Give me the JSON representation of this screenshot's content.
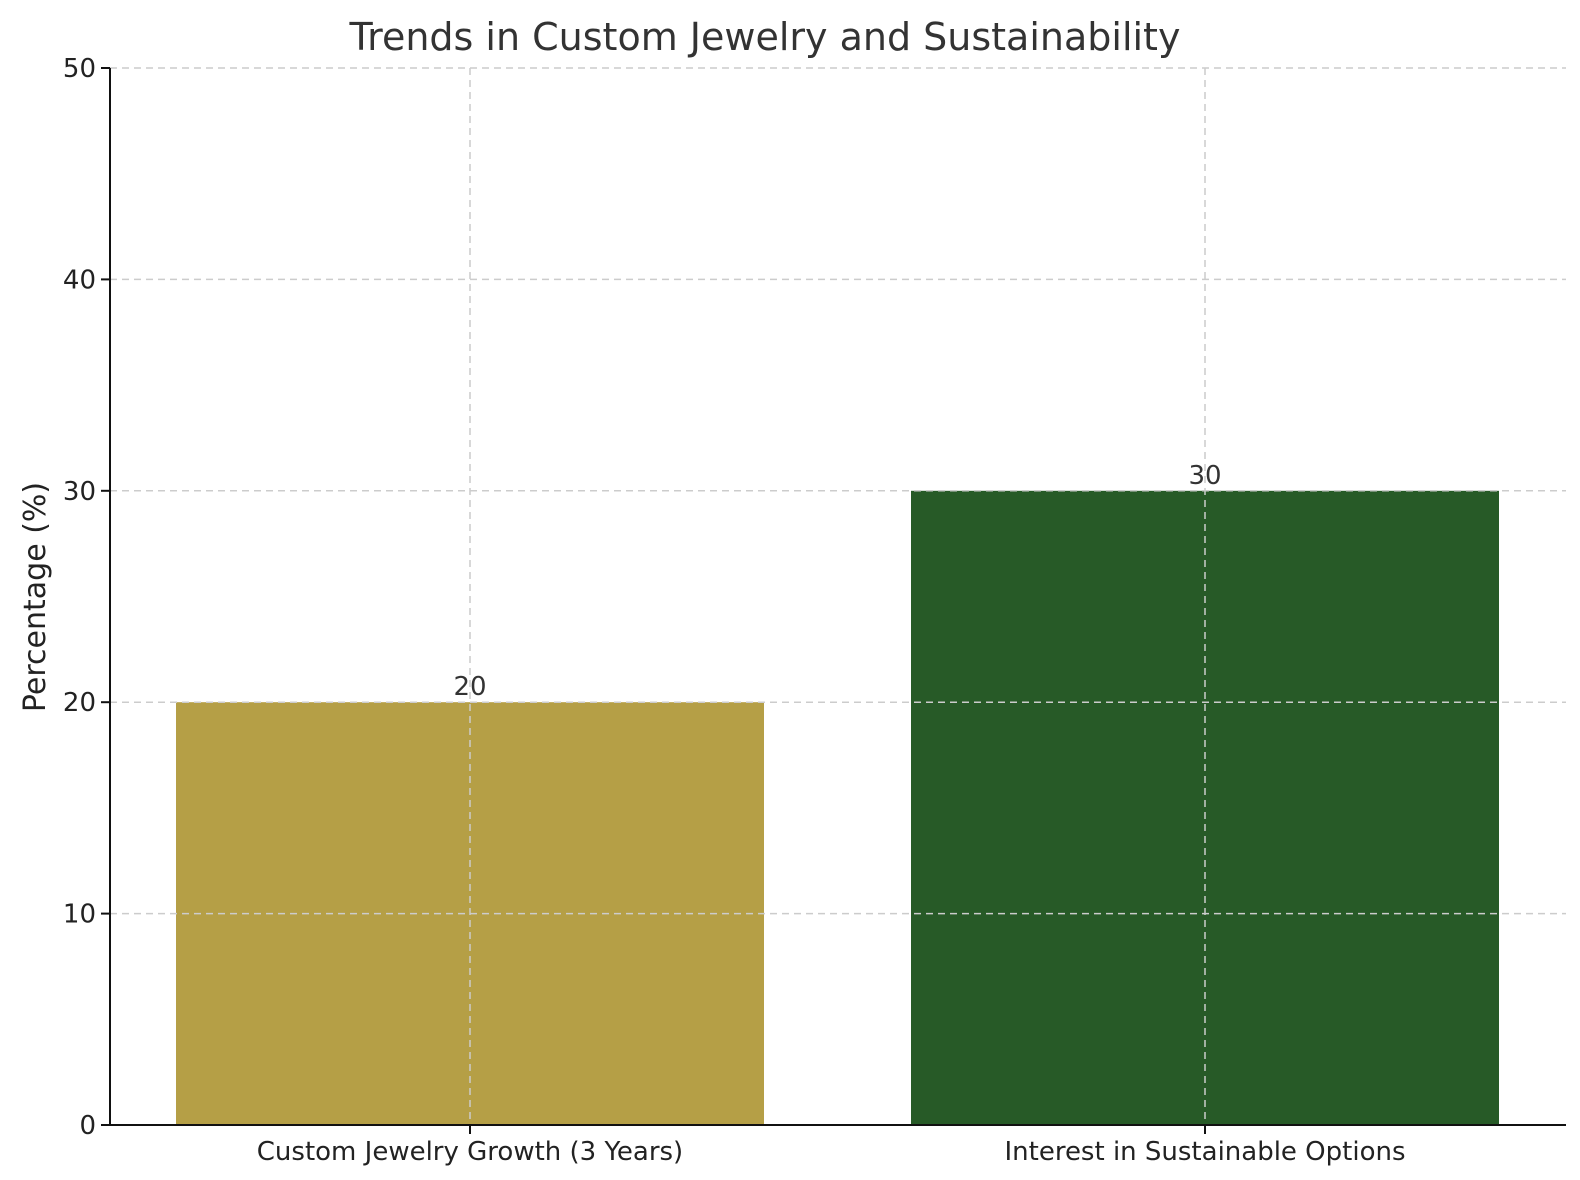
{
  "chart_data": {
    "type": "bar",
    "title": "Trends in Custom Jewelry and Sustainability",
    "xlabel": "",
    "ylabel": "Percentage (%)",
    "categories": [
      "Custom Jewelry Growth (3 Years)",
      "Interest in Sustainable Options"
    ],
    "values": [
      20,
      30
    ],
    "value_labels": [
      "20",
      "30"
    ],
    "colors": [
      "#b59f46",
      "#275a27"
    ],
    "ylim": [
      0,
      50
    ],
    "yticks": [
      0,
      10,
      20,
      30,
      40,
      50
    ],
    "ytick_labels": [
      "0",
      "10",
      "20",
      "30",
      "40",
      "50"
    ],
    "grid": true,
    "grid_color": "#cccccc"
  }
}
